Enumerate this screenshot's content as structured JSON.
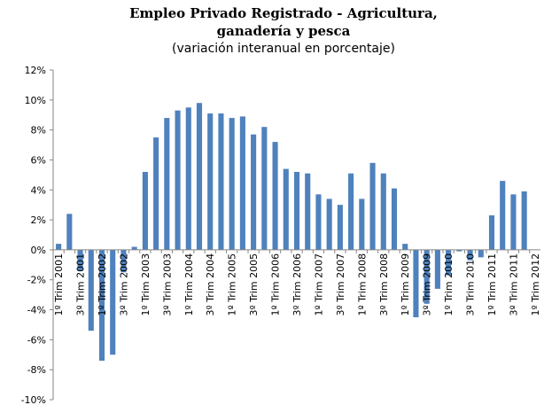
{
  "chart_data": {
    "type": "bar",
    "title": [
      "Empleo Privado Registrado - Agricultura,",
      "ganadería y pesca"
    ],
    "subtitle": "(variación interanual en porcentaje)",
    "color": "#4f81bd",
    "categories": [
      "1º Trim 2001",
      null,
      "3º Trim 2001",
      null,
      "1º Trim 2002",
      null,
      "3º Trim 2002",
      null,
      "1º Trim 2003",
      null,
      "3º Trim 2003",
      null,
      "1º Trim 2004",
      null,
      "3º Trim 2004",
      null,
      "1º Trim 2005",
      null,
      "3º Trim 2005",
      null,
      "1º Trim 2006",
      null,
      "3º Trim 2006",
      null,
      "1º Trim 2007",
      null,
      "3º Trim 2007",
      null,
      "1º Trim 2008",
      null,
      "3º Trim 2008",
      null,
      "1º Trim 2009",
      null,
      "3º Trim 2009",
      null,
      "1º Trim 2010",
      null,
      "3º Trim 2010",
      null,
      "1º Trim 2011",
      null,
      "3º Trim 2011",
      null,
      "1º Trim 2012"
    ],
    "values": [
      0.4,
      2.4,
      -1.4,
      -5.4,
      -7.4,
      -7.0,
      -1.5,
      0.2,
      5.2,
      7.5,
      8.8,
      9.3,
      9.5,
      9.8,
      9.1,
      9.1,
      8.8,
      8.9,
      7.7,
      8.2,
      7.2,
      5.4,
      5.2,
      5.1,
      3.7,
      3.4,
      3.0,
      5.1,
      3.4,
      5.8,
      5.1,
      4.1,
      0.4,
      -4.5,
      -3.6,
      -2.6,
      -1.7,
      -0.1,
      -0.7,
      -0.5,
      2.3,
      4.6,
      3.7,
      3.9,
      null
    ],
    "ylim": [
      -10,
      12
    ],
    "yticks": [
      {
        "value": -10,
        "label": "-10%"
      },
      {
        "value": -8,
        "label": "-8%"
      },
      {
        "value": -6,
        "label": "-6%"
      },
      {
        "value": -4,
        "label": "-4%"
      },
      {
        "value": -2,
        "label": "-2%"
      },
      {
        "value": 0,
        "label": "0%"
      },
      {
        "value": 2,
        "label": "2%"
      },
      {
        "value": 4,
        "label": "4%"
      },
      {
        "value": 6,
        "label": "6%"
      },
      {
        "value": 8,
        "label": "8%"
      },
      {
        "value": 10,
        "label": "10%"
      },
      {
        "value": 12,
        "label": "12%"
      }
    ],
    "grid": false
  }
}
